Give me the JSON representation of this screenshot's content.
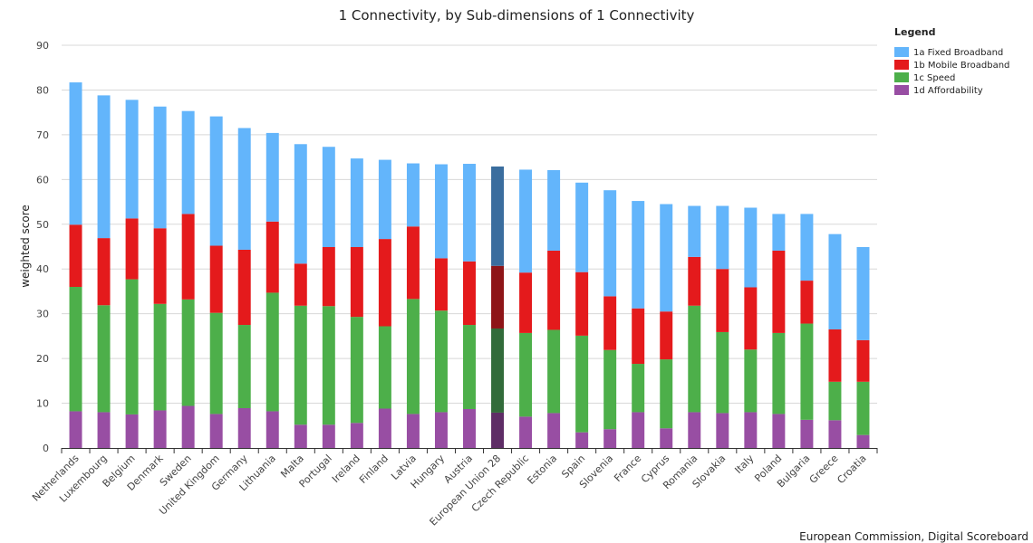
{
  "chart_data": {
    "type": "bar",
    "stacked": true,
    "title": "1 Connectivity, by Sub-dimensions of 1 Connectivity",
    "ylabel": "weighted score",
    "xlabel": "",
    "ylim": [
      0,
      90
    ],
    "yticks": [
      0,
      10,
      20,
      30,
      40,
      50,
      60,
      70,
      80,
      90
    ],
    "grid": true,
    "legend_position": "top-right",
    "legend_title": "Legend",
    "highlight_category": "European Union 28",
    "credit": "European Commission, Digital Scoreboard",
    "categories": [
      "Netherlands",
      "Luxembourg",
      "Belgium",
      "Denmark",
      "Sweden",
      "United Kingdom",
      "Germany",
      "Lithuania",
      "Malta",
      "Portugal",
      "Ireland",
      "Finland",
      "Latvia",
      "Hungary",
      "Austria",
      "European Union 28",
      "Czech Republic",
      "Estonia",
      "Spain",
      "Slovenia",
      "France",
      "Cyprus",
      "Romania",
      "Slovakia",
      "Italy",
      "Poland",
      "Bulgaria",
      "Greece",
      "Croatia"
    ],
    "series": [
      {
        "name": "1d Affordability",
        "color": "#984ea3",
        "highlight_color": "#5e2d66",
        "values": [
          8.2,
          8.0,
          7.5,
          8.4,
          9.4,
          7.6,
          8.9,
          8.2,
          5.2,
          5.2,
          5.6,
          8.8,
          7.6,
          8.0,
          8.7,
          7.9,
          7.0,
          7.8,
          3.5,
          4.2,
          8.0,
          4.4,
          8.0,
          7.8,
          8.0,
          7.6,
          6.3,
          6.2,
          2.9
        ]
      },
      {
        "name": "1c Speed",
        "color": "#4daf4a",
        "highlight_color": "#326b3a",
        "values": [
          27.8,
          23.9,
          30.2,
          23.8,
          23.8,
          22.6,
          18.6,
          26.5,
          26.6,
          26.5,
          23.7,
          18.4,
          25.7,
          22.7,
          18.8,
          18.8,
          18.7,
          18.6,
          21.6,
          17.7,
          10.8,
          15.4,
          23.8,
          18.1,
          14.0,
          18.1,
          21.5,
          8.6,
          11.9
        ]
      },
      {
        "name": "1b Mobile Broadband",
        "color": "#e41a1c",
        "highlight_color": "#8e1518",
        "values": [
          13.9,
          15.0,
          13.6,
          16.9,
          19.1,
          15.0,
          16.8,
          15.9,
          9.4,
          13.2,
          15.6,
          19.5,
          16.2,
          11.7,
          14.2,
          14.0,
          13.5,
          17.7,
          14.2,
          12.0,
          12.4,
          10.7,
          10.9,
          14.1,
          13.9,
          18.4,
          9.6,
          11.7,
          9.3
        ]
      },
      {
        "name": "1a Fixed Broadband",
        "color": "#63b5fb",
        "highlight_color": "#3a6d9e",
        "values": [
          31.8,
          31.9,
          26.5,
          27.2,
          23.0,
          28.9,
          27.2,
          19.8,
          26.7,
          22.4,
          19.8,
          17.7,
          14.1,
          21.0,
          21.8,
          22.2,
          23.0,
          18.0,
          20.0,
          23.7,
          24.0,
          24.0,
          11.4,
          14.1,
          17.8,
          8.2,
          14.9,
          21.3,
          20.8
        ]
      }
    ]
  }
}
